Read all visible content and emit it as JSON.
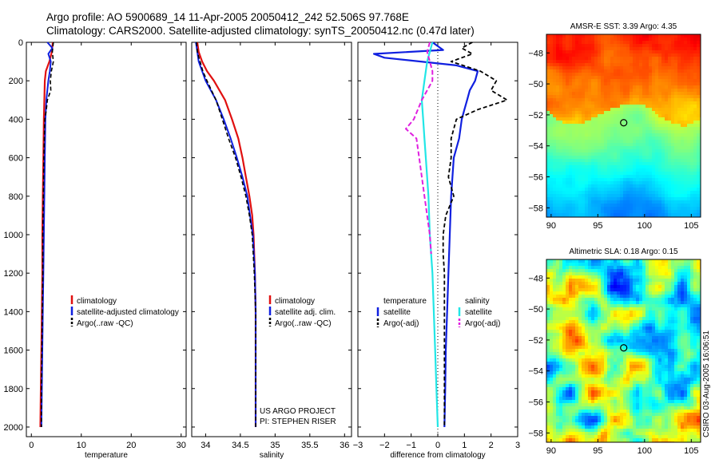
{
  "title": {
    "line1": "Argo profile: AO 5900689_14 11-Apr-2005 20050412_242 52.506S 97.768E",
    "line2": "Climatology: CARS2000. Satellite-adjusted climatology: synTS_20050412.nc (0.47d later)"
  },
  "colors": {
    "climatology": "#e01010",
    "satellite": "#1020e0",
    "argo": "#000000",
    "salinity_sat": "#22e6e6",
    "salinity_argo": "#e020e0"
  },
  "side_label": "CSIRO 03-Aug-2005 16:06:51",
  "chart_data": [
    {
      "type": "line",
      "xlabel": "temperature",
      "ylabel": "",
      "xlim": [
        -1,
        31
      ],
      "ylim": [
        2050,
        0
      ],
      "xticks": [
        0,
        10,
        20,
        30
      ],
      "yticks": [
        0,
        200,
        400,
        600,
        800,
        1000,
        1200,
        1400,
        1600,
        1800,
        2000
      ],
      "legend": [
        "climatology",
        "satellite-adjusted climatology",
        "Argo(..raw -QC)"
      ],
      "series": [
        {
          "name": "climatology",
          "depth": [
            0,
            50,
            100,
            150,
            200,
            300,
            400,
            600,
            800,
            1000,
            1200,
            1400,
            1600,
            1800,
            2000
          ],
          "values": [
            4.3,
            4.1,
            3.6,
            2.9,
            2.7,
            2.6,
            2.5,
            2.4,
            2.3,
            2.2,
            2.2,
            2.1,
            2.0,
            1.9,
            1.8
          ]
        },
        {
          "name": "satellite-adjusted climatology",
          "depth": [
            0,
            30,
            60,
            100,
            150,
            200,
            300,
            400,
            600,
            800,
            1000,
            1200,
            1400,
            1600,
            1800,
            2000
          ],
          "values": [
            3.2,
            4.2,
            3.4,
            3.9,
            3.7,
            3.4,
            3.0,
            2.8,
            2.7,
            2.6,
            2.5,
            2.4,
            2.3,
            2.2,
            2.1,
            2.0
          ]
        },
        {
          "name": "Argo(..raw -QC)",
          "depth": [
            0,
            50,
            100,
            150,
            200,
            250,
            300,
            350,
            400,
            600,
            800,
            1000,
            1200,
            1400,
            1600,
            1800,
            2000
          ],
          "values": [
            4.4,
            4.2,
            4.4,
            4.0,
            3.8,
            3.9,
            3.2,
            3.0,
            2.7,
            2.5,
            2.4,
            2.3,
            2.3,
            2.2,
            2.1,
            2.0,
            2.0
          ]
        }
      ]
    },
    {
      "type": "line",
      "xlabel": "salinity",
      "xlim": [
        33.8,
        36.1
      ],
      "ylim": [
        2050,
        0
      ],
      "xticks": [
        34,
        34.5,
        35,
        35.5,
        36
      ],
      "legend": [
        "climatology",
        "satellite adj. clim.",
        "Argo(..raw -QC)"
      ],
      "annotation": [
        "US ARGO PROJECT",
        "PI: STEPHEN RISER"
      ],
      "series": [
        {
          "name": "climatology",
          "depth": [
            0,
            50,
            100,
            150,
            200,
            300,
            400,
            500,
            600,
            700,
            800,
            900,
            1000,
            1200,
            1400,
            1600,
            1800,
            2000
          ],
          "values": [
            33.88,
            33.9,
            33.95,
            34.02,
            34.12,
            34.28,
            34.38,
            34.47,
            34.53,
            34.58,
            34.63,
            34.67,
            34.69,
            34.71,
            34.72,
            34.72,
            34.72,
            34.72
          ]
        },
        {
          "name": "satellite adj. clim.",
          "depth": [
            0,
            50,
            100,
            150,
            200,
            300,
            400,
            500,
            600,
            700,
            800,
            900,
            1000,
            1200,
            1400,
            1600,
            1800,
            2000
          ],
          "values": [
            33.86,
            33.88,
            33.9,
            33.95,
            34.0,
            34.15,
            34.26,
            34.36,
            34.45,
            34.53,
            34.6,
            34.64,
            34.68,
            34.71,
            34.72,
            34.72,
            34.72,
            34.72
          ]
        },
        {
          "name": "Argo(..raw -QC)",
          "depth": [
            0,
            50,
            100,
            150,
            200,
            300,
            400,
            500,
            600,
            700,
            800,
            900,
            1000,
            1200,
            1400,
            1600,
            1800,
            2000
          ],
          "values": [
            33.87,
            33.88,
            33.92,
            33.96,
            34.02,
            34.15,
            34.24,
            34.33,
            34.43,
            34.51,
            34.58,
            34.63,
            34.67,
            34.7,
            34.72,
            34.72,
            34.72,
            34.72
          ]
        }
      ]
    },
    {
      "type": "line",
      "xlabel": "difference from climatology",
      "xlim": [
        -3,
        3
      ],
      "ylim": [
        2050,
        0
      ],
      "xticks": [
        -3,
        -2,
        -1,
        0,
        1,
        2,
        3
      ],
      "legend_groups": [
        {
          "heading": "temperature",
          "items": [
            "satellite",
            "Argo(-adj)"
          ]
        },
        {
          "heading": "salinity",
          "items": [
            "satellite",
            "Argo(-adj)"
          ]
        }
      ],
      "series": [
        {
          "name": "temperature satellite",
          "depth": [
            0,
            40,
            60,
            80,
            120,
            150,
            200,
            250,
            300,
            350,
            400,
            500,
            600,
            800,
            1000,
            1200,
            1400,
            1600,
            1800,
            2000
          ],
          "values": [
            -0.2,
            0.2,
            -2.4,
            -2.0,
            0.7,
            1.5,
            1.4,
            1.2,
            1.1,
            1.0,
            0.9,
            0.8,
            0.6,
            0.5,
            0.45,
            0.4,
            0.35,
            0.3,
            0.28,
            0.25
          ]
        },
        {
          "name": "temperature Argo(-adj)",
          "depth": [
            0,
            30,
            60,
            100,
            150,
            200,
            250,
            300,
            350,
            400,
            500,
            600,
            700,
            800,
            900,
            1000,
            1100,
            1200,
            1400,
            1600,
            1800,
            2000
          ],
          "values": [
            1.3,
            0.9,
            1.3,
            0.5,
            1.6,
            2.2,
            2.0,
            2.6,
            1.5,
            0.7,
            0.5,
            0.5,
            0.4,
            0.6,
            0.3,
            0.2,
            0.2,
            0.25,
            0.25,
            0.25,
            0.25,
            0.25
          ]
        },
        {
          "name": "salinity satellite",
          "depth": [
            0,
            100,
            200,
            300,
            400,
            500,
            600,
            800,
            1000,
            1200,
            1400,
            1600,
            1800,
            2000
          ],
          "values": [
            -0.2,
            -0.4,
            -0.5,
            -0.6,
            -0.55,
            -0.5,
            -0.45,
            -0.35,
            -0.3,
            -0.2,
            -0.15,
            -0.1,
            -0.05,
            0
          ]
        },
        {
          "name": "salinity Argo(-adj)",
          "depth": [
            0,
            50,
            100,
            150,
            200,
            300,
            400,
            450,
            500,
            600,
            700,
            800,
            900,
            1000,
            1100
          ],
          "values": [
            -0.3,
            -0.4,
            -0.3,
            -0.2,
            -0.2,
            -0.6,
            -0.9,
            -1.2,
            -0.8,
            -0.7,
            -0.6,
            -0.5,
            -0.4,
            -0.3,
            -0.25
          ]
        }
      ]
    },
    {
      "type": "heatmap",
      "title": "AMSR-E SST: 3.39 Argo: 4.35",
      "xlim": [
        89.5,
        106
      ],
      "ylim": [
        -58.6,
        -46.8
      ],
      "xticks": [
        90,
        95,
        100,
        105
      ],
      "yticks": [
        -48,
        -50,
        -52,
        -54,
        -56,
        -58
      ],
      "marker": {
        "lon": 97.768,
        "lat": -52.506
      }
    },
    {
      "type": "heatmap",
      "title": "Altimetric SLA: 0.18 Argo: 0.15",
      "xlim": [
        89.5,
        106
      ],
      "ylim": [
        -58.6,
        -46.8
      ],
      "xticks": [
        90,
        95,
        100,
        105
      ],
      "yticks": [
        -48,
        -50,
        -52,
        -54,
        -56,
        -58
      ],
      "marker": {
        "lon": 97.768,
        "lat": -52.506
      }
    }
  ]
}
